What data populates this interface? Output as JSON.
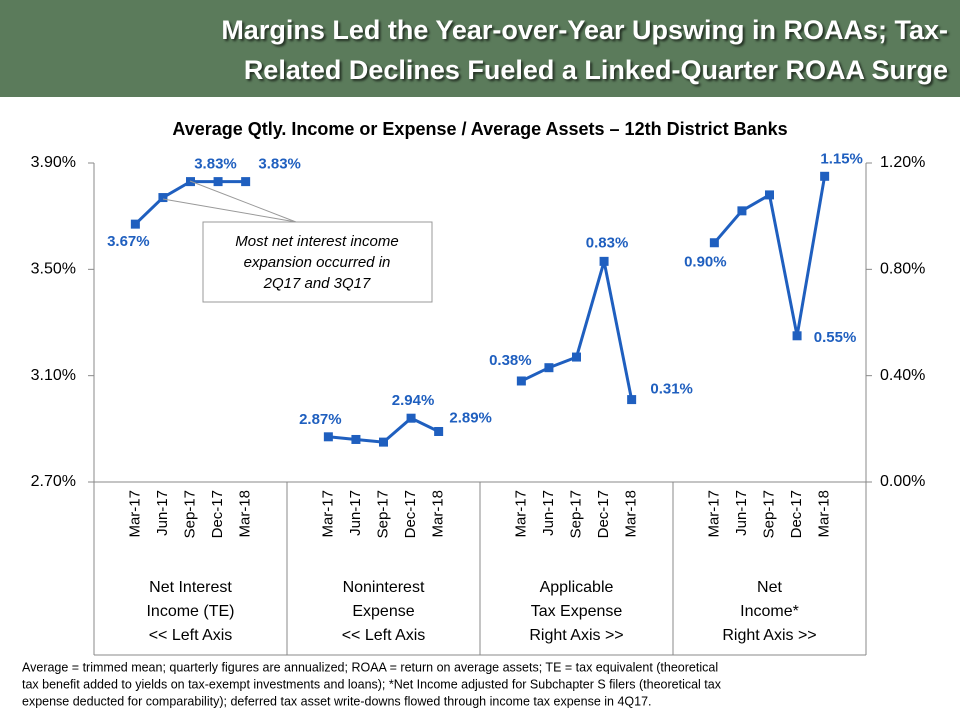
{
  "header": {
    "title_lines": [
      "Margins Led the Year-over-Year Upswing in ROAAs; Tax-",
      "Related Declines Fueled a Linked-Quarter ROAA Surge"
    ]
  },
  "chart_data": {
    "type": "line",
    "title": "Average Qtly. Income or Expense / Average Assets – 12th District Banks",
    "categories": [
      null,
      "Mar-17",
      "Jun-17",
      "Sep-17",
      "Dec-17",
      "Mar-18",
      null,
      null,
      "Mar-17",
      "Jun-17",
      "Sep-17",
      "Dec-17",
      "Mar-18",
      null,
      null,
      "Mar-17",
      "Jun-17",
      "Sep-17",
      "Dec-17",
      "Mar-18",
      null,
      null,
      "Mar-17",
      "Jun-17",
      "Sep-17",
      "Dec-17",
      "Mar-18",
      null
    ],
    "groups": [
      {
        "label_lines": [
          "Net Interest",
          "Income (TE)",
          "<< Left Axis"
        ]
      },
      {
        "label_lines": [
          "Noninterest",
          "Expense",
          "<< Left Axis"
        ]
      },
      {
        "label_lines": [
          "Applicable",
          "Tax Expense",
          "Right Axis >>"
        ]
      },
      {
        "label_lines": [
          "Net",
          "Income*",
          "Right Axis >>"
        ]
      }
    ],
    "series": [
      {
        "name": "Net Interest Income (TE)",
        "color": "#1f5fbf",
        "values": [
          null,
          3.67,
          3.77,
          3.83,
          3.83,
          3.83,
          null,
          null,
          null,
          null,
          null,
          null,
          null,
          null,
          null,
          null,
          null,
          null,
          null,
          null,
          null,
          null,
          null,
          null,
          null,
          null,
          null,
          null
        ],
        "value_labels": [
          null,
          "3.67%",
          null,
          "3.83%",
          null,
          "3.83%",
          null,
          null,
          null,
          null,
          null,
          null,
          null,
          null,
          null,
          null,
          null,
          null,
          null,
          null,
          null,
          null,
          null,
          null,
          null,
          null,
          null,
          null
        ]
      },
      {
        "name": "Noninterest Expense",
        "color": "#1f5fbf",
        "values": [
          null,
          null,
          null,
          null,
          null,
          null,
          null,
          null,
          2.87,
          2.86,
          2.85,
          2.94,
          2.89,
          null,
          null,
          null,
          null,
          null,
          null,
          null,
          null,
          null,
          null,
          null,
          null,
          null,
          null,
          null
        ],
        "value_labels": [
          null,
          null,
          null,
          null,
          null,
          null,
          null,
          null,
          "2.87%",
          null,
          null,
          "2.94%",
          "2.89%",
          null,
          null,
          null,
          null,
          null,
          null,
          null,
          null,
          null,
          null,
          null,
          null,
          null,
          null,
          null
        ]
      },
      {
        "name": "Applicable Tax Expense",
        "color": "#1f5fbf",
        "axis": "y2",
        "values": [
          null,
          null,
          null,
          null,
          null,
          null,
          null,
          null,
          null,
          null,
          null,
          null,
          null,
          null,
          null,
          0.38,
          0.43,
          0.47,
          0.83,
          0.31,
          null,
          null,
          null,
          null,
          null,
          null,
          null,
          null
        ],
        "value_labels": [
          null,
          null,
          null,
          null,
          null,
          null,
          null,
          null,
          null,
          null,
          null,
          null,
          null,
          null,
          null,
          "0.38%",
          null,
          null,
          "0.83%",
          "0.31%",
          null,
          null,
          null,
          null,
          null,
          null,
          null,
          null
        ]
      },
      {
        "name": "Net Income*",
        "color": "#1f5fbf",
        "axis": "y2",
        "values": [
          null,
          null,
          null,
          null,
          null,
          null,
          null,
          null,
          null,
          null,
          null,
          null,
          null,
          null,
          null,
          null,
          null,
          null,
          null,
          null,
          null,
          null,
          0.9,
          1.02,
          1.08,
          0.55,
          1.15,
          null
        ],
        "value_labels": [
          null,
          null,
          null,
          null,
          null,
          null,
          null,
          null,
          null,
          null,
          null,
          null,
          null,
          null,
          null,
          null,
          null,
          null,
          null,
          null,
          null,
          null,
          "0.90%",
          null,
          null,
          "0.55%",
          "1.15%",
          null
        ]
      }
    ],
    "ylim": [
      2.7,
      3.9
    ],
    "yticks": [
      {
        "value": 2.7,
        "label": "2.70%"
      },
      {
        "value": 3.1,
        "label": "3.10%"
      },
      {
        "value": 3.5,
        "label": "3.50%"
      },
      {
        "value": 3.9,
        "label": "3.90%"
      }
    ],
    "y2lim": [
      0,
      1.2
    ],
    "y2ticks": [
      {
        "value": 0,
        "label": "0.00%"
      },
      {
        "value": 0.4,
        "label": "0.40%"
      },
      {
        "value": 0.8,
        "label": "0.80%"
      },
      {
        "value": 1.2,
        "label": "1.20%"
      }
    ],
    "annotation_lines": [
      "Most net interest income",
      "expansion occurred in",
      "2Q17 and 3Q17"
    ],
    "footnote_lines": [
      "Average = trimmed mean; quarterly figures are annualized; ROAA = return on average assets; TE = tax equivalent (theoretical",
      "tax benefit added to yields on tax-exempt investments  and loans); *Net Income adjusted for Subchapter S filers (theoretical tax",
      "expense deducted for comparability); deferred tax asset write-downs flowed through  income tax expense in 4Q17."
    ]
  }
}
